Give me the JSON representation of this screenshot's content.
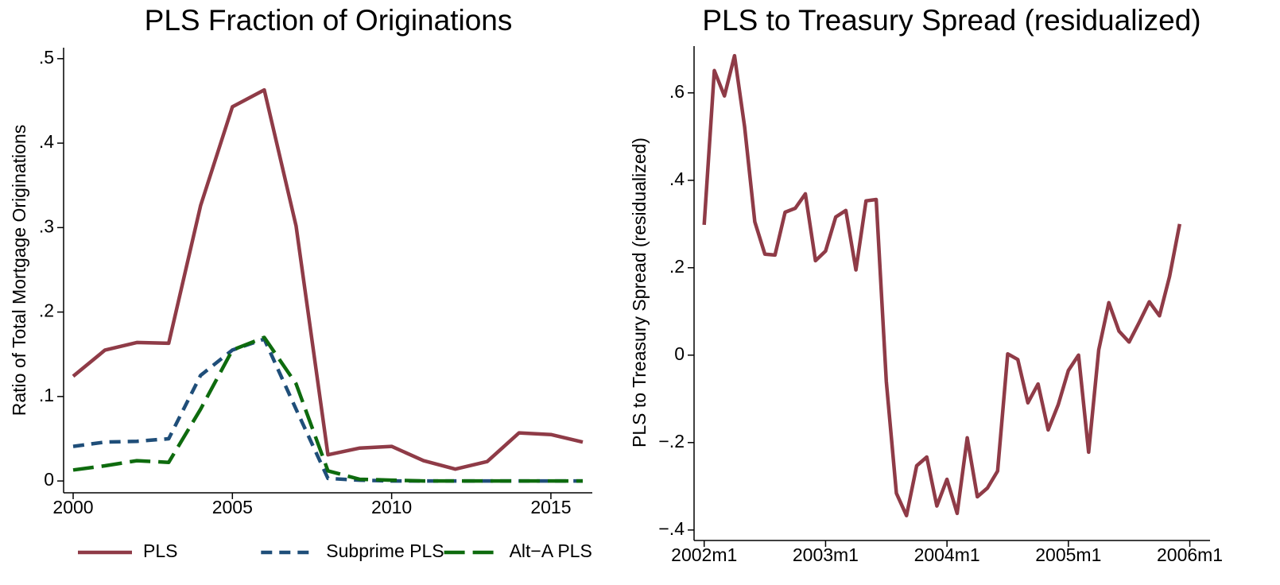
{
  "chart_data": [
    {
      "type": "line",
      "title": "PLS Fraction of Originations",
      "ylabel": "Ratio of Total Mortgage Originations",
      "x": [
        2000,
        2001,
        2002,
        2003,
        2004,
        2005,
        2006,
        2007,
        2008,
        2009,
        2010,
        2011,
        2012,
        2013,
        2014,
        2015,
        2016
      ],
      "series": [
        {
          "name": "PLS",
          "color": "#8f3b47",
          "style": "solid",
          "values": [
            0.124,
            0.155,
            0.164,
            0.163,
            0.326,
            0.443,
            0.463,
            0.302,
            0.031,
            0.039,
            0.041,
            0.024,
            0.014,
            0.023,
            0.057,
            0.055,
            0.046
          ]
        },
        {
          "name": "Subprime PLS",
          "color": "#1f4e79",
          "style": "dash",
          "values": [
            0.041,
            0.046,
            0.047,
            0.05,
            0.125,
            0.155,
            0.168,
            0.085,
            0.003,
            0.001,
            0,
            0,
            0,
            0,
            0,
            0,
            0
          ]
        },
        {
          "name": "Alt−A PLS",
          "color": "#0e6b0e",
          "style": "longdash",
          "values": [
            0.013,
            0.018,
            0.024,
            0.022,
            0.085,
            0.155,
            0.17,
            0.115,
            0.012,
            0.002,
            0.001,
            0,
            0,
            0,
            0,
            0,
            0
          ]
        }
      ],
      "xlim": [
        1999.7,
        2016.3
      ],
      "xticks": [
        2000,
        2005,
        2010,
        2015
      ],
      "ylim": [
        -0.014,
        0.513
      ],
      "yticks": [
        0,
        {
          "value": 0.1,
          "label": ".1"
        },
        {
          "value": 0.2,
          "label": ".2"
        },
        {
          "value": 0.3,
          "label": ".3"
        },
        {
          "value": 0.4,
          "label": ".4"
        },
        {
          "value": 0.5,
          "label": ".5"
        }
      ],
      "legend": "bottom"
    },
    {
      "type": "line",
      "title": "PLS to Treasury Spread (residualized)",
      "ylabel": "PLS to Treasury Spread (residualized)",
      "x": [
        504,
        505,
        506,
        507,
        508,
        509,
        510,
        511,
        512,
        513,
        514,
        515,
        516,
        517,
        518,
        519,
        520,
        521,
        522,
        523,
        524,
        525,
        526,
        527,
        528,
        529,
        530,
        531,
        532,
        533,
        534,
        535,
        536,
        537,
        538,
        539,
        540,
        541,
        542,
        543,
        544,
        545,
        546,
        547,
        548,
        549,
        550,
        551
      ],
      "color": "#8f3b47",
      "values": [
        0.298,
        0.651,
        0.593,
        0.685,
        0.522,
        0.305,
        0.231,
        0.229,
        0.327,
        0.336,
        0.369,
        0.216,
        0.238,
        0.316,
        0.331,
        0.195,
        0.353,
        0.356,
        -0.06,
        -0.316,
        -0.367,
        -0.253,
        -0.233,
        -0.345,
        -0.284,
        -0.362,
        -0.189,
        -0.324,
        -0.304,
        -0.265,
        0.003,
        -0.01,
        -0.109,
        -0.066,
        -0.171,
        -0.113,
        -0.035,
        0.0,
        -0.222,
        0.012,
        0.12,
        0.055,
        0.03,
        0.075,
        0.122,
        0.09,
        0.18,
        0.3
      ],
      "xlim": [
        503,
        554
      ],
      "xticks": [
        {
          "value": 504,
          "label": "2002m1"
        },
        {
          "value": 516,
          "label": "2003m1"
        },
        {
          "value": 528,
          "label": "2004m1"
        },
        {
          "value": 540,
          "label": "2005m1"
        },
        {
          "value": 552,
          "label": "2006m1"
        }
      ],
      "ylim": [
        -0.424,
        0.707
      ],
      "yticks": [
        {
          "value": -0.4,
          "label": "−.4"
        },
        {
          "value": -0.2,
          "label": "−.2"
        },
        0,
        {
          "value": 0.2,
          "label": ".2"
        },
        {
          "value": 0.4,
          "label": ".4"
        },
        {
          "value": 0.6,
          "label": ".6"
        }
      ]
    }
  ]
}
